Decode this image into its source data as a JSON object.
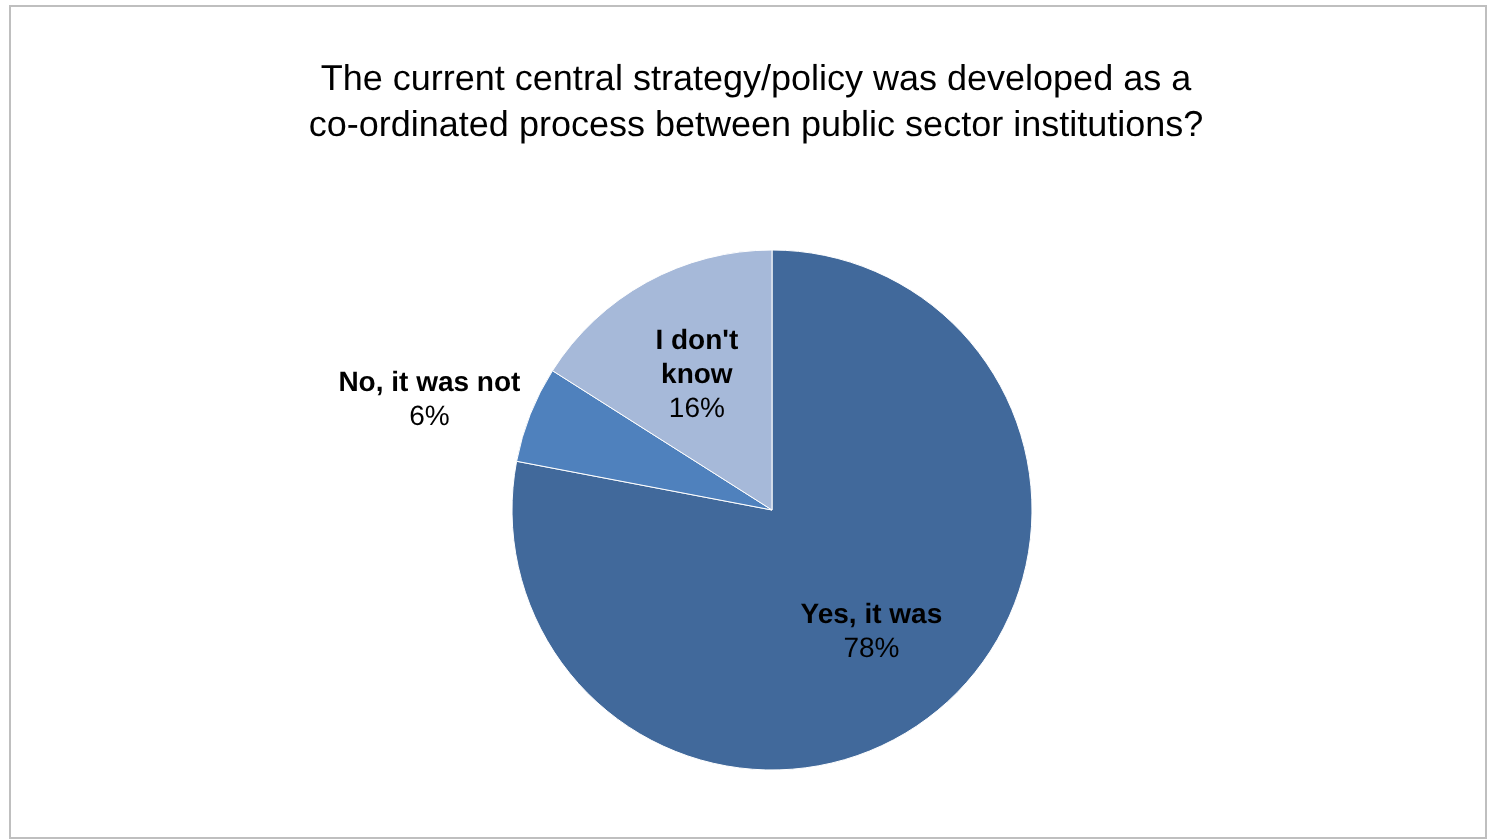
{
  "chart_data": {
    "type": "pie",
    "title": "The current central strategy/policy was developed as a co-ordinated process between public sector institutions?",
    "categories": [
      "Yes, it was",
      "No, it was not",
      "I don't know"
    ],
    "values": [
      78,
      6,
      16
    ],
    "colors": [
      "#41699b",
      "#4f81bd",
      "#a6b9d9"
    ],
    "value_labels": [
      "78%",
      "6%",
      "16%"
    ]
  }
}
